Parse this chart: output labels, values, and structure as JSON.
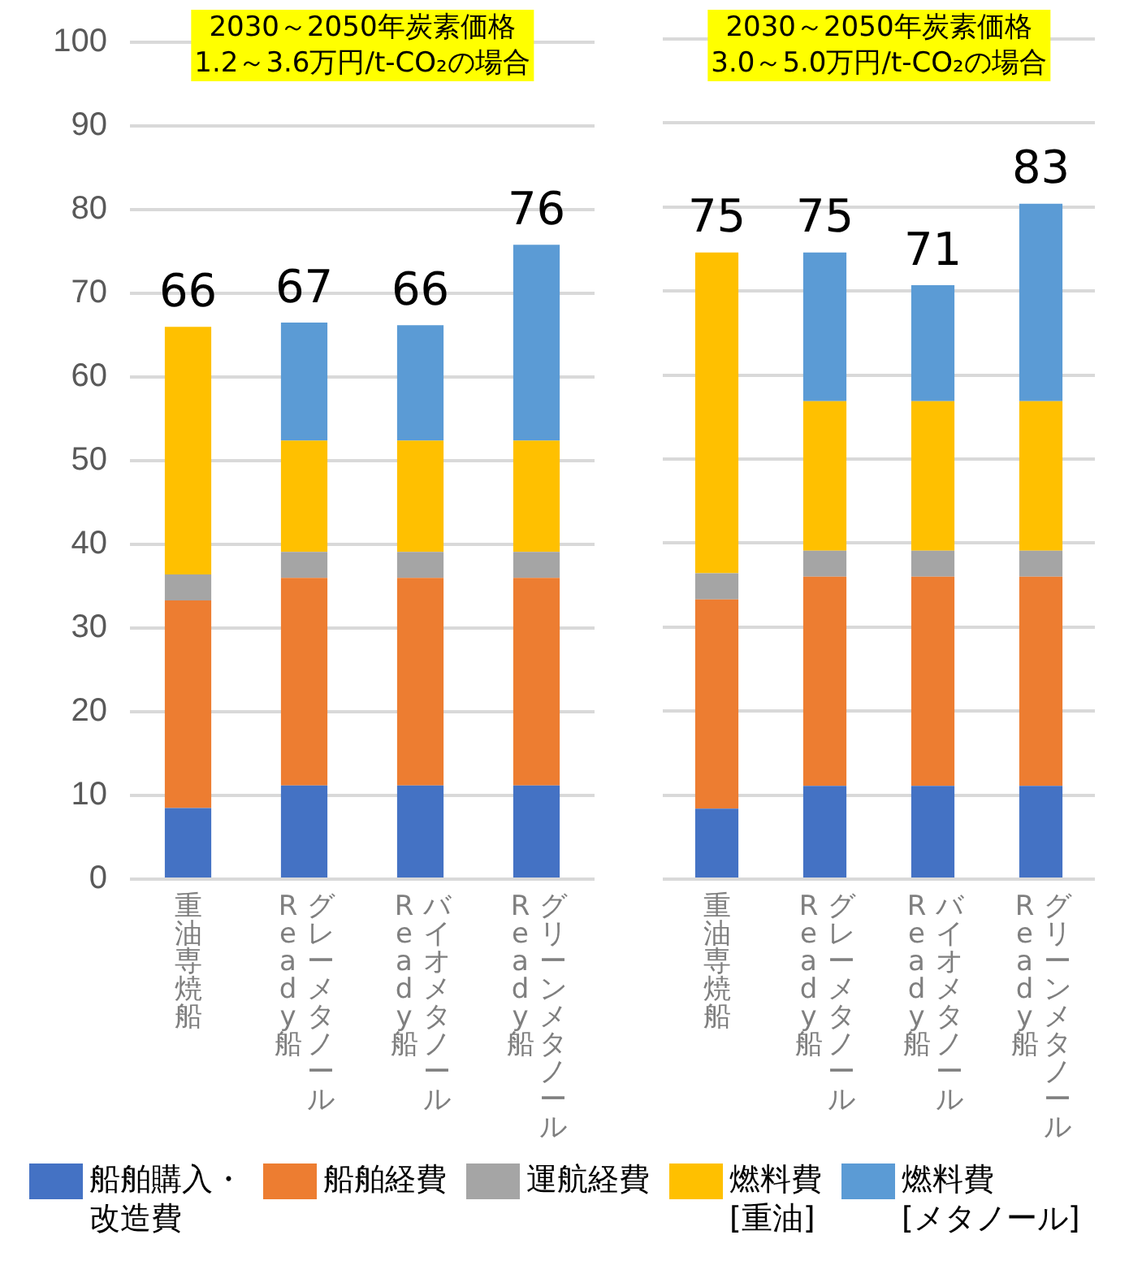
{
  "chart_data": [
    {
      "type": "bar",
      "stacked": true,
      "title": "2030～2050年炭素価格\n1.2～3.6万円/t-CO₂の場合",
      "categories": [
        "重油専焼船",
        "グレーメタノールReady船",
        "バイオメタノールReady船",
        "グリーンメタノールReady船"
      ],
      "series": [
        {
          "name": "船舶購入・改造費",
          "color": "#4472c4",
          "values": [
            8.5,
            11.2,
            11.2,
            11.2
          ]
        },
        {
          "name": "船舶経費",
          "color": "#ed7d31",
          "values": [
            24.8,
            24.8,
            24.8,
            24.8
          ]
        },
        {
          "name": "運航経費",
          "color": "#a5a5a5",
          "values": [
            3.1,
            3.1,
            3.1,
            3.1
          ]
        },
        {
          "name": "燃料費[重油]",
          "color": "#ffc000",
          "values": [
            29.6,
            13.3,
            13.3,
            13.3
          ]
        },
        {
          "name": "燃料費[メタノール]",
          "color": "#5b9bd5",
          "values": [
            0,
            14.1,
            13.8,
            23.4
          ]
        }
      ],
      "totals": [
        "66",
        "67",
        "66",
        "76"
      ],
      "ylim": [
        0,
        100
      ],
      "yticks": [
        0,
        10,
        20,
        30,
        40,
        50,
        60,
        70,
        80,
        90,
        100
      ],
      "grid": "y",
      "legend": "bottom"
    },
    {
      "type": "bar",
      "stacked": true,
      "title": "2030～2050年炭素価格\n3.0～5.0万円/t-CO₂の場合",
      "categories": [
        "重油専焼船",
        "グレーメタノールReady船",
        "バイオメタノールReady船",
        "グリーンメタノールReady船"
      ],
      "series": [
        {
          "color": "#4472c4",
          "values": [
            8.4,
            11.1,
            11.1,
            11.1
          ]
        },
        {
          "color": "#ed7d31",
          "values": [
            24.9,
            24.9,
            24.9,
            24.9
          ]
        },
        {
          "color": "#a5a5a5",
          "values": [
            3.1,
            3.1,
            3.1,
            3.1
          ]
        },
        {
          "color": "#ffc000",
          "values": [
            38.2,
            17.8,
            17.8,
            17.8
          ]
        },
        {
          "color": "#5b9bd5",
          "values": [
            0,
            17.7,
            13.8,
            23.5
          ]
        }
      ],
      "totals": [
        "75",
        "75",
        "71",
        "83"
      ],
      "ylim": [
        0,
        100
      ],
      "yticks": [
        0,
        10,
        20,
        30,
        40,
        50,
        60,
        70,
        80,
        90,
        100
      ],
      "grid": "y",
      "tick_labels": "x"
    }
  ]
}
